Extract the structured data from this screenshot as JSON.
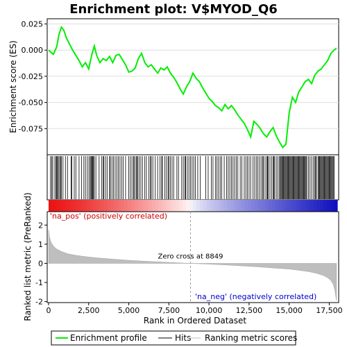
{
  "chart_data": {
    "type": "line",
    "title": "Enrichment plot: V$MYOD_Q6",
    "es_panel": {
      "ylabel": "Enrichment score (ES)",
      "ylim": [
        -0.1,
        0.03
      ],
      "yticks": [
        {
          "v": 0.025,
          "label": "0.025"
        },
        {
          "v": 0.0,
          "label": "0.000"
        },
        {
          "v": -0.025,
          "label": "-0.025"
        },
        {
          "v": -0.05,
          "label": "-0.050"
        },
        {
          "v": -0.075,
          "label": "-0.075"
        }
      ],
      "series_name": "Enrichment profile",
      "x": [
        0,
        300,
        500,
        650,
        800,
        950,
        1100,
        1300,
        1500,
        1700,
        1900,
        2100,
        2300,
        2500,
        2700,
        2850,
        3000,
        3200,
        3400,
        3600,
        3800,
        4000,
        4200,
        4400,
        4600,
        4800,
        5000,
        5200,
        5400,
        5600,
        5800,
        6000,
        6200,
        6400,
        6600,
        6800,
        7000,
        7200,
        7400,
        7600,
        7800,
        8000,
        8200,
        8400,
        8600,
        8800,
        9000,
        9200,
        9400,
        9600,
        9800,
        10000,
        10200,
        10400,
        10600,
        10800,
        11000,
        11200,
        11400,
        11600,
        11800,
        12000,
        12200,
        12400,
        12600,
        12800,
        13000,
        13200,
        13400,
        13600,
        13800,
        14000,
        14200,
        14400,
        14600,
        14800,
        15000,
        15200,
        15400,
        15600,
        15800,
        16000,
        16200,
        16400,
        16600,
        16800,
        17000,
        17200,
        17400,
        17600,
        17800,
        17950
      ],
      "y": [
        0.0,
        -0.004,
        0.003,
        0.015,
        0.022,
        0.019,
        0.012,
        0.006,
        0.0,
        -0.005,
        -0.01,
        -0.016,
        -0.012,
        -0.018,
        -0.004,
        0.004,
        -0.005,
        -0.012,
        -0.008,
        -0.01,
        -0.006,
        -0.012,
        -0.005,
        -0.004,
        -0.009,
        -0.014,
        -0.021,
        -0.02,
        -0.017,
        -0.008,
        -0.003,
        -0.012,
        -0.016,
        -0.014,
        -0.018,
        -0.022,
        -0.017,
        -0.019,
        -0.016,
        -0.022,
        -0.026,
        -0.031,
        -0.037,
        -0.042,
        -0.035,
        -0.03,
        -0.022,
        -0.027,
        -0.03,
        -0.036,
        -0.041,
        -0.046,
        -0.049,
        -0.053,
        -0.055,
        -0.058,
        -0.052,
        -0.056,
        -0.053,
        -0.057,
        -0.062,
        -0.066,
        -0.07,
        -0.076,
        -0.083,
        -0.068,
        -0.071,
        -0.075,
        -0.08,
        -0.083,
        -0.078,
        -0.074,
        -0.082,
        -0.088,
        -0.093,
        -0.09,
        -0.06,
        -0.045,
        -0.05,
        -0.04,
        -0.035,
        -0.03,
        -0.028,
        -0.032,
        -0.024,
        -0.02,
        -0.018,
        -0.014,
        -0.01,
        -0.003,
        0.0,
        0.002
      ],
      "color": "#00ee00"
    },
    "hits": [
      120,
      200,
      260,
      390,
      470,
      510,
      560,
      610,
      700,
      740,
      800,
      900,
      1050,
      1180,
      1400,
      1450,
      1600,
      1700,
      1900,
      2050,
      2200,
      2300,
      2420,
      2520,
      2600,
      2650,
      2700,
      2750,
      2800,
      2850,
      2950,
      3150,
      3300,
      3400,
      3450,
      3550,
      3650,
      3800,
      3850,
      3950,
      4050,
      4150,
      4250,
      4350,
      4450,
      4550,
      4650,
      4800,
      5000,
      5100,
      5200,
      5300,
      5350,
      5450,
      5500,
      5550,
      5650,
      5750,
      5850,
      6000,
      6100,
      6250,
      6350,
      6400,
      6500,
      6650,
      6800,
      6950,
      7050,
      7100,
      7250,
      7350,
      7450,
      7500,
      7600,
      7700,
      7800,
      8000,
      8100,
      8300,
      8400,
      8500,
      8550,
      8650,
      8750,
      8850,
      8950,
      9050,
      9150,
      9300,
      9450,
      9800,
      9950,
      10150,
      10250,
      10400,
      10500,
      10600,
      10700,
      10800,
      10950,
      11100,
      11200,
      11300,
      11400,
      11500,
      11600,
      11700,
      11800,
      11950,
      12050,
      12200,
      12300,
      12400,
      12500,
      12600,
      12750,
      12850,
      12950,
      13050,
      13150,
      13250,
      13350,
      13400,
      13500,
      13600,
      13650,
      13700,
      13800,
      13900,
      14000,
      14050,
      14100,
      14200,
      14300,
      14400,
      14450,
      14500,
      14550,
      14600,
      14650,
      14700,
      14750,
      14800,
      14850,
      14900,
      14950,
      15000,
      15050,
      15100,
      15150,
      15200,
      15250,
      15300,
      15350,
      15400,
      15450,
      15500,
      15550,
      15600,
      15650,
      15700,
      15750,
      15800,
      15850,
      15900,
      15950,
      16000,
      16050,
      16100,
      16200,
      16300,
      16400,
      16500,
      16600,
      16650,
      16700,
      16800,
      16850,
      16900,
      16950,
      17000,
      17050,
      17100,
      17150,
      17200,
      17250,
      17300,
      17350,
      17400,
      17450,
      17500,
      17550,
      17600,
      17650,
      17700,
      17750,
      17800
    ],
    "metric_panel": {
      "ylabel": "Ranked list metric (PreRanked)",
      "ylim": [
        -2.05,
        2.7
      ],
      "yticks": [
        {
          "v": 2,
          "label": "2"
        },
        {
          "v": 1,
          "label": "1"
        },
        {
          "v": 0,
          "label": "0"
        },
        {
          "v": -1,
          "label": "-1"
        },
        {
          "v": -2,
          "label": "-2"
        }
      ],
      "x": [
        0,
        50,
        150,
        300,
        500,
        800,
        1200,
        1700,
        2300,
        3000,
        4000,
        5000,
        6000,
        7000,
        8000,
        8849,
        10000,
        11000,
        12000,
        13000,
        14000,
        15000,
        15600,
        16200,
        16700,
        17100,
        17400,
        17600,
        17750,
        17850,
        17950
      ],
      "y": [
        1.75,
        1.4,
        1.1,
        0.9,
        0.75,
        0.62,
        0.5,
        0.42,
        0.35,
        0.29,
        0.22,
        0.16,
        0.11,
        0.07,
        0.03,
        0.0,
        -0.04,
        -0.08,
        -0.13,
        -0.18,
        -0.24,
        -0.3,
        -0.36,
        -0.43,
        -0.52,
        -0.62,
        -0.75,
        -0.9,
        -1.1,
        -1.4,
        -1.95
      ],
      "zero_cross": 8849,
      "zero_cross_label": "Zero cross at 8849",
      "pos_label": "'na_pos' (positively correlated)",
      "neg_label": "'na_neg' (negatively correlated)"
    },
    "xaxis": {
      "xlabel": "Rank in Ordered Dataset",
      "xlim": [
        0,
        18000
      ],
      "xticks": [
        {
          "v": 0,
          "label": "0"
        },
        {
          "v": 2500,
          "label": "2,500"
        },
        {
          "v": 5000,
          "label": "5,000"
        },
        {
          "v": 7500,
          "label": "7,500"
        },
        {
          "v": 10000,
          "label": "10,000"
        },
        {
          "v": 12500,
          "label": "12,500"
        },
        {
          "v": 15000,
          "label": "15,000"
        },
        {
          "v": 17500,
          "label": "17,500"
        }
      ]
    },
    "legend": {
      "placement": "bottom",
      "items": [
        {
          "label": "Enrichment profile",
          "color": "#00ee00"
        },
        {
          "label": "Hits",
          "color": "#000000"
        },
        {
          "label": "Ranking metric scores",
          "color": "#bebebe"
        }
      ]
    }
  }
}
